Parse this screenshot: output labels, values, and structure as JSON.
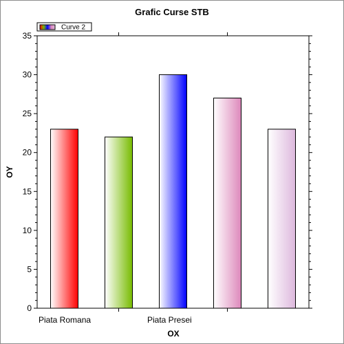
{
  "chart_data": {
    "type": "bar",
    "title": "Grafic Curse STB",
    "xlabel": "OX",
    "ylabel": "OY",
    "categories": [
      "Piata Romana",
      "",
      "Piata Presei",
      "",
      ""
    ],
    "series": [
      {
        "name": "Curve 2",
        "values": [
          23,
          22,
          30,
          27,
          23
        ],
        "colors": [
          "#ff0000",
          "#77bb00",
          "#0000ff",
          "#dd88bb",
          "#ddb8dd"
        ]
      }
    ],
    "ylim": [
      0,
      35
    ],
    "yticks": [
      0,
      5,
      10,
      15,
      20,
      25,
      30,
      35
    ],
    "grid": false,
    "legend_position": "top-left"
  }
}
